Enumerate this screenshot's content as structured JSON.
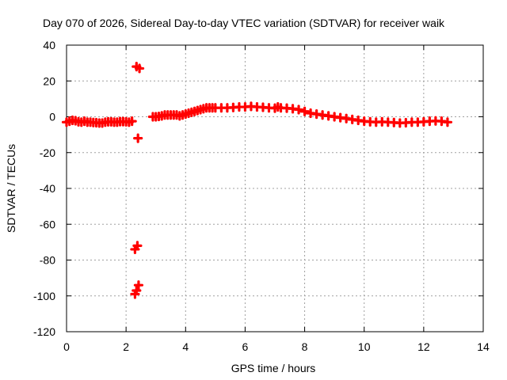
{
  "chart_data": {
    "type": "scatter",
    "title": "Day 070 of 2026, Sidereal Day-to-day VTEC variation (SDTVAR) for receiver waik",
    "xlabel": "GPS time / hours",
    "ylabel": "SDTVAR / TECUs",
    "xlim": [
      0,
      14
    ],
    "ylim": [
      -120,
      40
    ],
    "xticks": [
      0,
      2,
      4,
      6,
      8,
      10,
      12,
      14
    ],
    "yticks": [
      -120,
      -100,
      -80,
      -60,
      -40,
      -20,
      0,
      20,
      40
    ],
    "xtick_labels": [
      "0",
      "2",
      "4",
      "6",
      "8",
      "10",
      "12",
      "14"
    ],
    "ytick_labels": [
      "-120",
      "-100",
      "-80",
      "-60",
      "-40",
      "-20",
      "0",
      "20",
      "40"
    ],
    "grid": true,
    "marker_color": "#ff0000",
    "series": [
      {
        "name": "SDTVAR",
        "points": [
          [
            0.0,
            -3
          ],
          [
            0.1,
            -2.5
          ],
          [
            0.2,
            -2
          ],
          [
            0.3,
            -2.2
          ],
          [
            0.4,
            -2.8
          ],
          [
            0.5,
            -3
          ],
          [
            0.6,
            -2.5
          ],
          [
            0.7,
            -3
          ],
          [
            0.8,
            -3
          ],
          [
            0.9,
            -3.2
          ],
          [
            1.0,
            -3.3
          ],
          [
            1.1,
            -3.5
          ],
          [
            1.2,
            -3.5
          ],
          [
            1.3,
            -3
          ],
          [
            1.4,
            -2.8
          ],
          [
            1.5,
            -2.8
          ],
          [
            1.6,
            -3
          ],
          [
            1.7,
            -3
          ],
          [
            1.8,
            -2.7
          ],
          [
            1.9,
            -2.7
          ],
          [
            2.0,
            -2.8
          ],
          [
            2.1,
            -3
          ],
          [
            2.2,
            -2.5
          ],
          [
            2.35,
            28
          ],
          [
            2.45,
            27
          ],
          [
            2.4,
            -12
          ],
          [
            2.3,
            -74
          ],
          [
            2.38,
            -72
          ],
          [
            2.3,
            -99
          ],
          [
            2.35,
            -97
          ],
          [
            2.42,
            -94
          ],
          [
            2.9,
            0
          ],
          [
            3.0,
            0
          ],
          [
            3.1,
            0.2
          ],
          [
            3.2,
            0.5
          ],
          [
            3.3,
            1
          ],
          [
            3.4,
            1
          ],
          [
            3.5,
            1
          ],
          [
            3.6,
            1
          ],
          [
            3.7,
            1
          ],
          [
            3.8,
            0.5
          ],
          [
            3.9,
            1
          ],
          [
            4.0,
            1.5
          ],
          [
            4.1,
            2
          ],
          [
            4.2,
            2.5
          ],
          [
            4.3,
            3
          ],
          [
            4.4,
            3.5
          ],
          [
            4.5,
            4
          ],
          [
            4.6,
            4.5
          ],
          [
            4.7,
            5
          ],
          [
            4.8,
            5
          ],
          [
            4.9,
            5
          ],
          [
            5.0,
            5
          ],
          [
            5.2,
            5
          ],
          [
            5.4,
            5
          ],
          [
            5.6,
            5.2
          ],
          [
            5.8,
            5.5
          ],
          [
            6.0,
            5.5
          ],
          [
            6.2,
            5.8
          ],
          [
            6.4,
            5.5
          ],
          [
            6.6,
            5.3
          ],
          [
            6.8,
            5
          ],
          [
            7.0,
            4.8
          ],
          [
            7.1,
            5.5
          ],
          [
            7.2,
            5
          ],
          [
            7.4,
            4.8
          ],
          [
            7.6,
            4.5
          ],
          [
            7.8,
            4
          ],
          [
            8.0,
            3
          ],
          [
            8.2,
            2
          ],
          [
            8.4,
            1.5
          ],
          [
            8.6,
            1
          ],
          [
            8.8,
            0.5
          ],
          [
            9.0,
            0
          ],
          [
            9.2,
            -0.5
          ],
          [
            9.4,
            -1
          ],
          [
            9.6,
            -1.5
          ],
          [
            9.8,
            -2
          ],
          [
            10.0,
            -2.5
          ],
          [
            10.2,
            -2.8
          ],
          [
            10.4,
            -3
          ],
          [
            10.6,
            -2.8
          ],
          [
            10.8,
            -3
          ],
          [
            11.0,
            -3.2
          ],
          [
            11.2,
            -3.5
          ],
          [
            11.4,
            -3.3
          ],
          [
            11.6,
            -3
          ],
          [
            11.8,
            -3
          ],
          [
            12.0,
            -2.8
          ],
          [
            12.2,
            -2.5
          ],
          [
            12.4,
            -2.3
          ],
          [
            12.6,
            -2.5
          ],
          [
            12.8,
            -3
          ]
        ]
      }
    ]
  }
}
